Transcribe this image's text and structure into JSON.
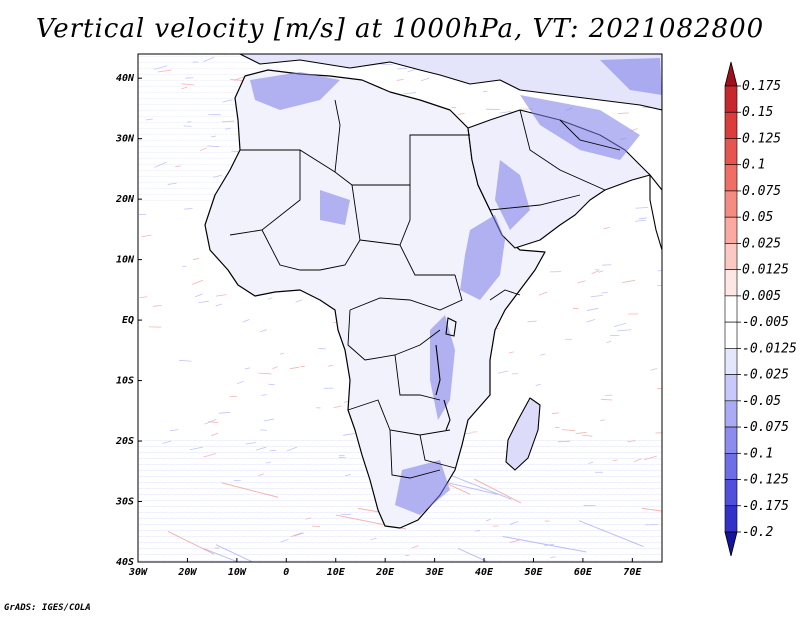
{
  "title": "Vertical velocity [m/s] at 1000hPa, VT: 2021082800",
  "credit": "GrADS: IGES/COLA",
  "map": {
    "lon_range": [
      -30,
      76
    ],
    "lat_range": [
      -40,
      44
    ],
    "x_ticks": [
      {
        "lon": -30,
        "label": "30W"
      },
      {
        "lon": -20,
        "label": "20W"
      },
      {
        "lon": -10,
        "label": "10W"
      },
      {
        "lon": 0,
        "label": "0"
      },
      {
        "lon": 10,
        "label": "10E"
      },
      {
        "lon": 20,
        "label": "20E"
      },
      {
        "lon": 30,
        "label": "30E"
      },
      {
        "lon": 40,
        "label": "40E"
      },
      {
        "lon": 50,
        "label": "50E"
      },
      {
        "lon": 60,
        "label": "60E"
      },
      {
        "lon": 70,
        "label": "70E"
      }
    ],
    "y_ticks": [
      {
        "lat": 40,
        "label": "40N"
      },
      {
        "lat": 30,
        "label": "30N"
      },
      {
        "lat": 20,
        "label": "20N"
      },
      {
        "lat": 10,
        "label": "10N"
      },
      {
        "lat": 0,
        "label": "EQ"
      },
      {
        "lat": -10,
        "label": "10S"
      },
      {
        "lat": -20,
        "label": "20S"
      },
      {
        "lat": -30,
        "label": "30S"
      },
      {
        "lat": -40,
        "label": "40S"
      }
    ]
  },
  "colorbar": {
    "levels": [
      {
        "label": "0.175",
        "color": "#b4141e"
      },
      {
        "label": "0.15",
        "color": "#c8282d"
      },
      {
        "label": "0.125",
        "color": "#dc3c3c"
      },
      {
        "label": "0.1",
        "color": "#e6554f"
      },
      {
        "label": "0.075",
        "color": "#f06e64"
      },
      {
        "label": "0.05",
        "color": "#f58c82"
      },
      {
        "label": "0.025",
        "color": "#faaaa0"
      },
      {
        "label": "0.0125",
        "color": "#fcc8c3"
      },
      {
        "label": "0.005",
        "color": "#fee6e4"
      },
      {
        "label": "-0.005",
        "color": "#ffffff"
      },
      {
        "label": "-0.0125",
        "color": "#e4e6fe"
      },
      {
        "label": "-0.025",
        "color": "#c8c8fa"
      },
      {
        "label": "-0.05",
        "color": "#aaaaf5"
      },
      {
        "label": "-0.075",
        "color": "#8c8cf0"
      },
      {
        "label": "-0.1",
        "color": "#6e6ee6"
      },
      {
        "label": "-0.125",
        "color": "#5050dc"
      },
      {
        "label": "-0.175",
        "color": "#3232c8"
      },
      {
        "label": "-0.2",
        "color": "#1e1eb4"
      }
    ],
    "top_arrow_color": "#a0101a",
    "bottom_arrow_color": "#1414a0"
  }
}
